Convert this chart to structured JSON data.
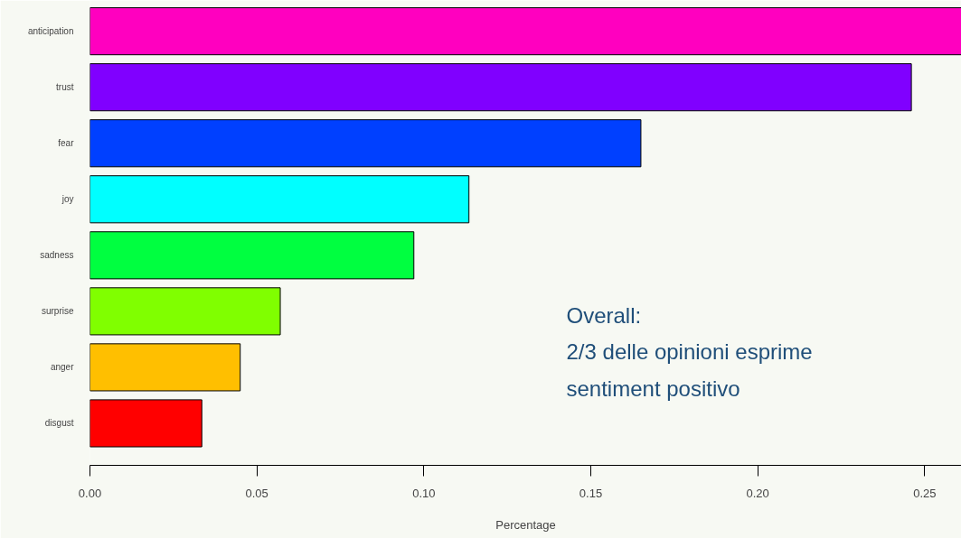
{
  "chart_data": {
    "type": "bar",
    "orientation": "horizontal",
    "xlabel": "Percentage",
    "categories": [
      "anticipation",
      "trust",
      "fear",
      "joy",
      "sadness",
      "surprise",
      "anger",
      "disgust"
    ],
    "values": [
      0.261,
      0.246,
      0.165,
      0.1135,
      0.097,
      0.057,
      0.045,
      0.0335
    ],
    "colors": [
      "#ff00bf",
      "#8000ff",
      "#0040ff",
      "#00ffff",
      "#00ff40",
      "#80ff00",
      "#ffbf00",
      "#ff0000"
    ],
    "xlim": [
      0,
      0.261
    ],
    "xticks": [
      {
        "value": 0,
        "label": "0.00"
      },
      {
        "value": 0.05,
        "label": "0.05"
      },
      {
        "value": 0.1,
        "label": "0.10"
      },
      {
        "value": 0.15,
        "label": "0.15"
      },
      {
        "value": 0.2,
        "label": "0.20"
      },
      {
        "value": 0.25,
        "label": "0.25"
      }
    ],
    "grid": false,
    "annotations": [
      "Overall:\n2/3 delle opinioni esprime\nsentiment positivo"
    ]
  }
}
